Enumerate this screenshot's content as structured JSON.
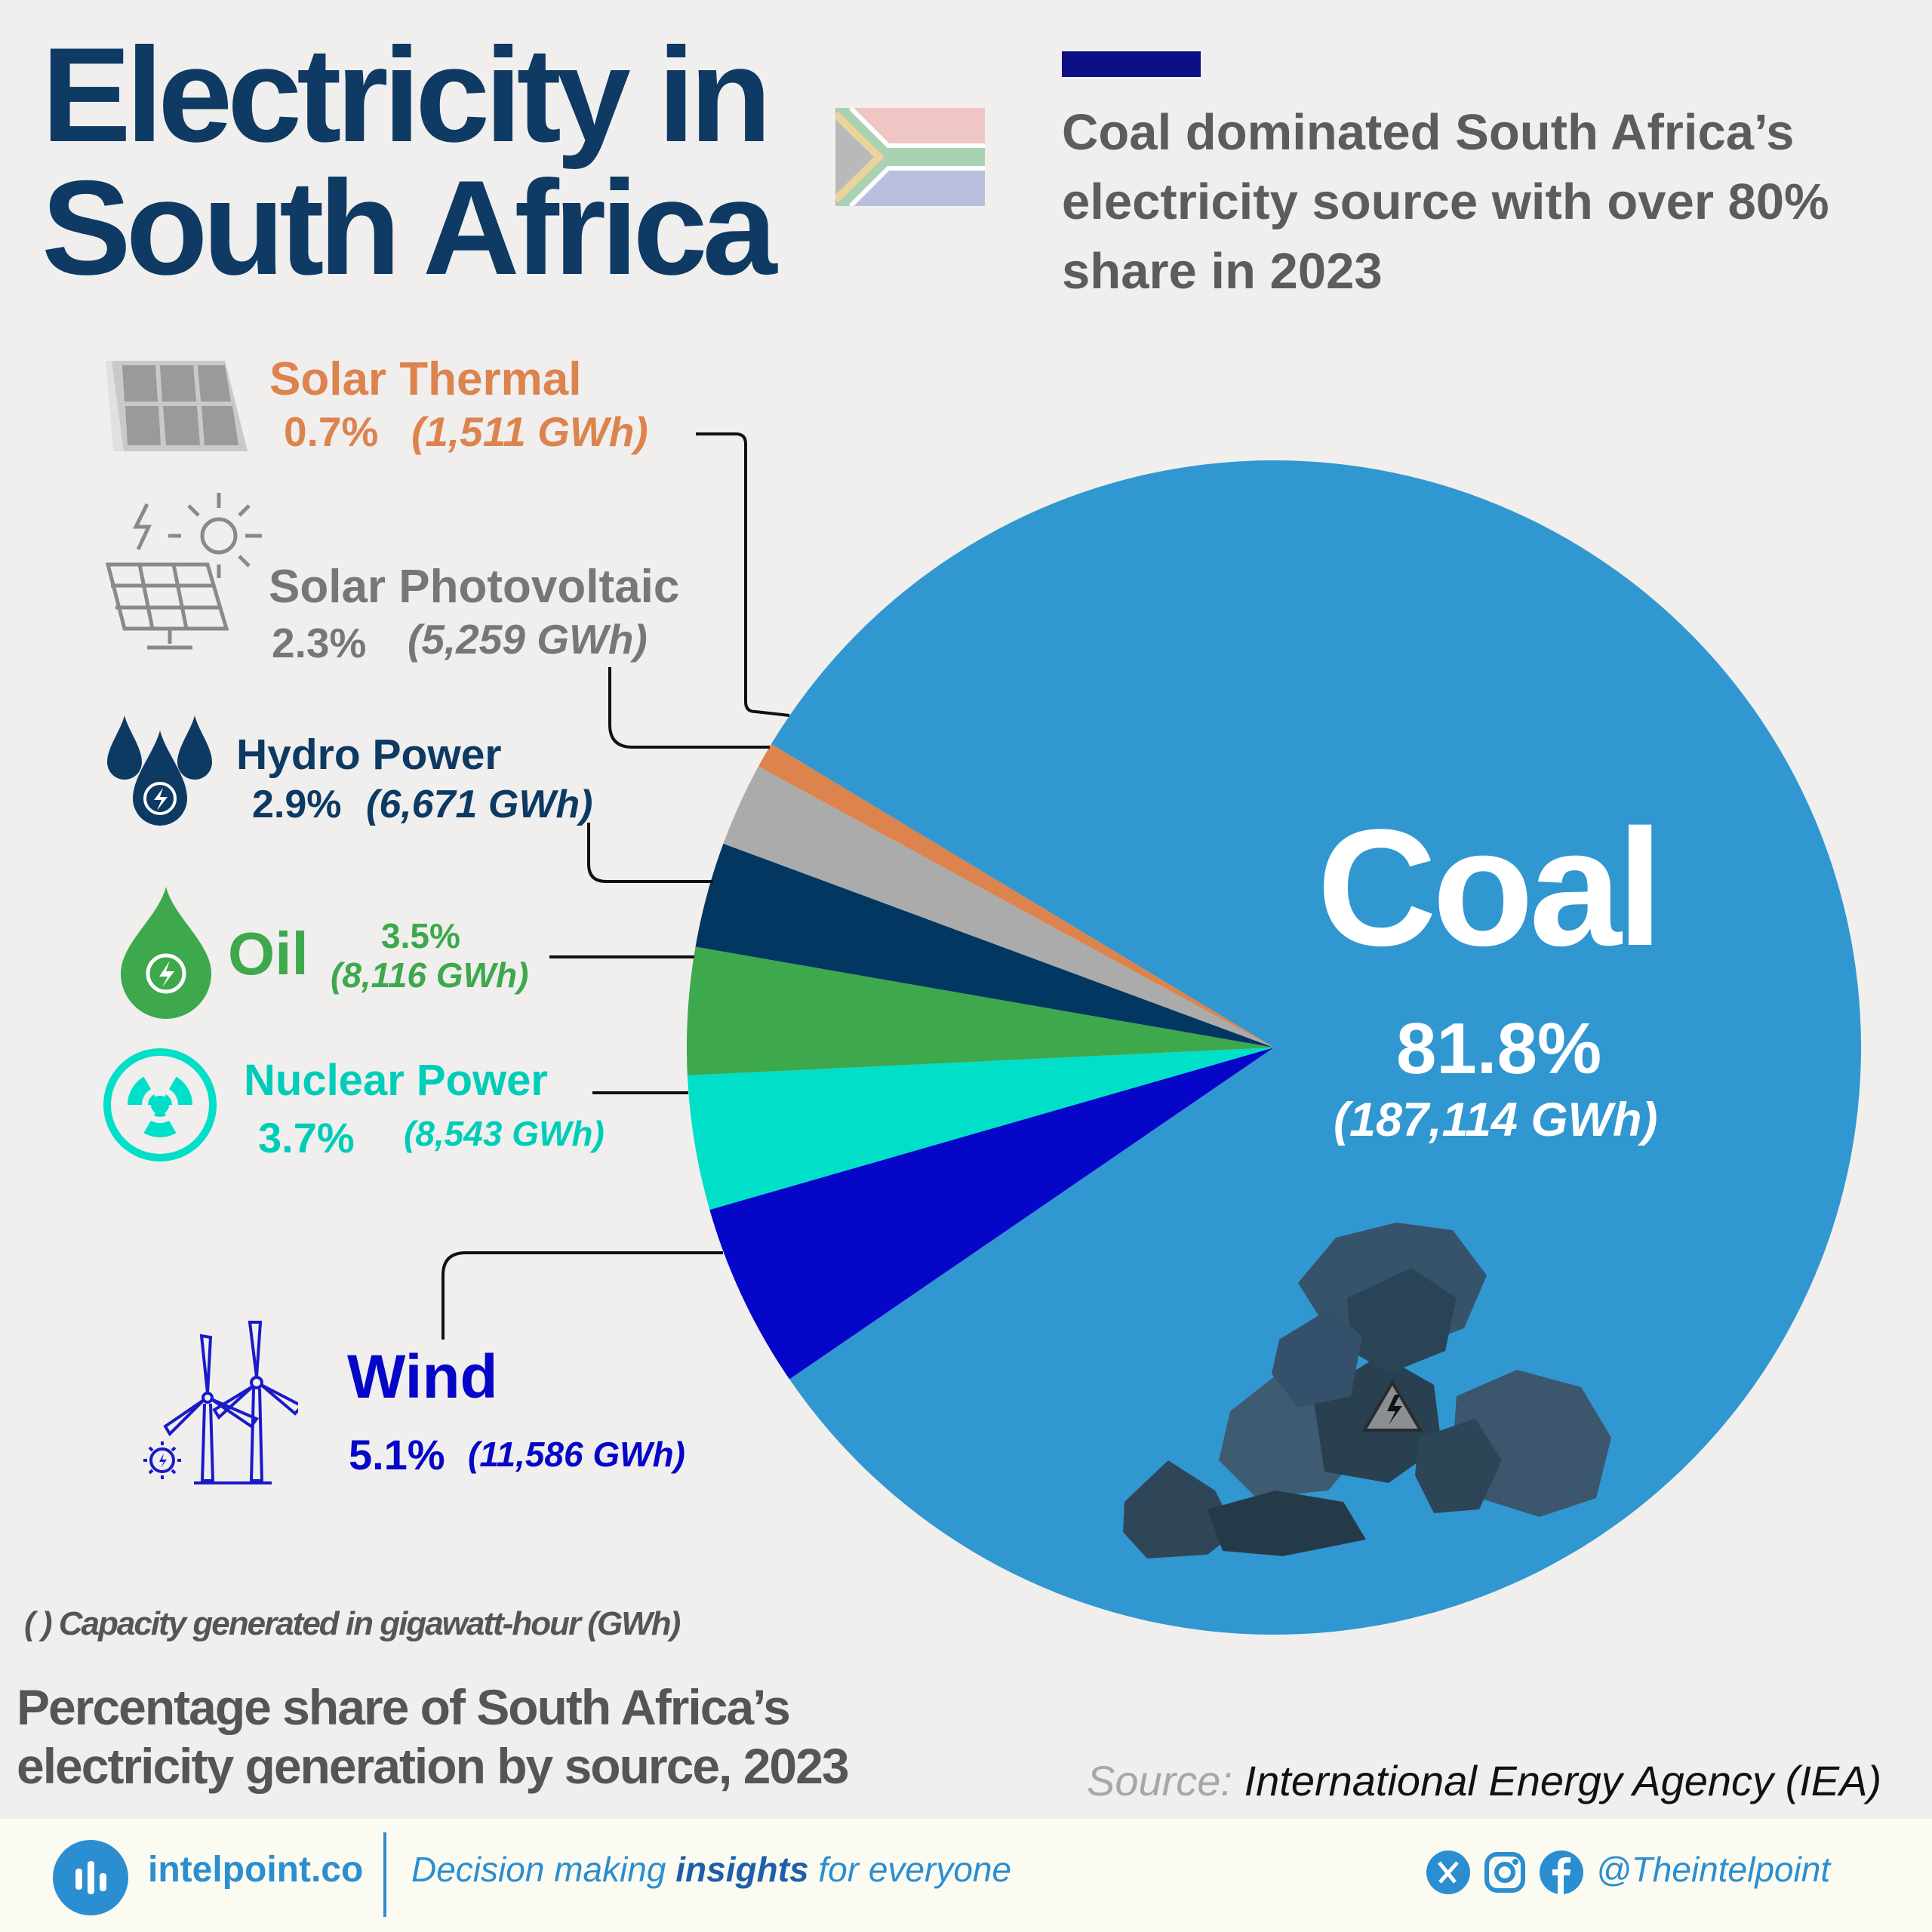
{
  "header": {
    "title_line1": "Electricity in",
    "title_line2": "South Africa",
    "subtitle": "Coal dominated South Africa’s electricity source with over 80% share in 2023"
  },
  "colors": {
    "title": "#0e3a63",
    "accent_bar": "#0b0e85",
    "coal": "#3197d0",
    "wind": "#0606c8",
    "nuclear": "#00dfc7",
    "oil": "#3ea84c",
    "hydro": "#023761",
    "solar_pv": "#ababab",
    "solar_thermal": "#dd834d"
  },
  "chart_data": {
    "type": "pie",
    "title": "Percentage share of South Africa’s electricity generation by source, 2023",
    "unit_note": "( ) Capacity generated in gigawatt-hour (GWh)",
    "slices": [
      {
        "label": "Coal",
        "percent": 81.8,
        "percent_text": "81.8%",
        "gwh": 187114,
        "gwh_text": "(187,114 GWh)",
        "color": "#3197d0"
      },
      {
        "label": "Wind",
        "percent": 5.1,
        "percent_text": "5.1%",
        "gwh": 11586,
        "gwh_text": "(11,586 GWh)",
        "color": "#0606c8"
      },
      {
        "label": "Nuclear Power",
        "percent": 3.7,
        "percent_text": "3.7%",
        "gwh": 8543,
        "gwh_text": "(8,543 GWh)",
        "color": "#00dfc7"
      },
      {
        "label": "Oil",
        "percent": 3.5,
        "percent_text": "3.5%",
        "gwh": 8116,
        "gwh_text": "(8,116 GWh)",
        "color": "#3ea84c"
      },
      {
        "label": "Hydro Power",
        "percent": 2.9,
        "percent_text": "2.9%",
        "gwh": 6671,
        "gwh_text": "(6,671 GWh)",
        "color": "#023761"
      },
      {
        "label": "Solar Photovoltaic",
        "percent": 2.3,
        "percent_text": "2.3%",
        "gwh": 5259,
        "gwh_text": "(5,259 GWh)",
        "color": "#ababab"
      },
      {
        "label": "Solar Thermal",
        "percent": 0.7,
        "percent_text": "0.7%",
        "gwh": 1511,
        "gwh_text": "(1,511 GWh)",
        "color": "#dd834d"
      }
    ],
    "legend": "leader-line labels, left side"
  },
  "source": {
    "label": "Source:",
    "name": "International Energy Agency (IEA)"
  },
  "footer": {
    "brand": "intelpoint.co",
    "tagline_pre": "Decision making ",
    "tagline_bold": "insights",
    "tagline_post": " for everyone",
    "handle": "@Theintelpoint"
  },
  "icons": [
    "solar-thermal-panel-icon",
    "solar-pv-panel-icon",
    "hydro-drops-icon",
    "oil-drop-icon",
    "nuclear-icon",
    "wind-turbine-icon",
    "coal-pile-icon",
    "south-africa-flag-icon",
    "intelpoint-logo-icon",
    "x-icon",
    "instagram-icon",
    "facebook-icon"
  ]
}
